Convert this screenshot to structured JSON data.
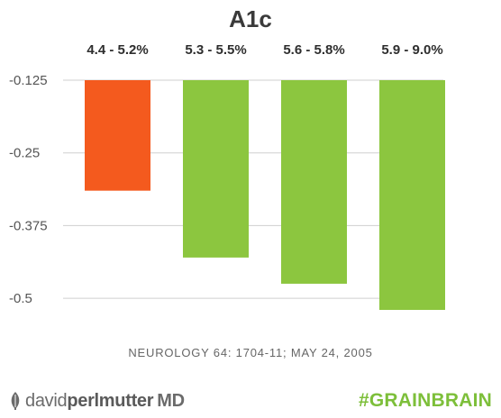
{
  "chart_data": {
    "type": "bar",
    "title": "A1c",
    "categories": [
      "4.4 - 5.2%",
      "5.3 - 5.5%",
      "5.6 - 5.8%",
      "5.9 - 9.0%"
    ],
    "values": [
      -0.315,
      -0.43,
      -0.475,
      -0.52
    ],
    "bar_colors": [
      "#f45a1e",
      "#8cc63f",
      "#8cc63f",
      "#8cc63f"
    ],
    "yticks": [
      -0.125,
      -0.25,
      -0.375,
      -0.5
    ],
    "ytick_labels": [
      "-0.125",
      "-0.25",
      "-0.375",
      "-0.5"
    ],
    "ylim": [
      -0.52,
      -0.125
    ],
    "category_labels_position": "top",
    "grid": true
  },
  "source_note": "NEUROLOGY 64: 1704-11; MAY 24, 2005",
  "footer": {
    "brand_light": "david",
    "brand_bold": "perlmutter",
    "brand_md": "MD",
    "hashtag": "#GRAINBRAIN",
    "leaf_icon": "leaf-icon",
    "accent_color": "#7dbf3a"
  }
}
